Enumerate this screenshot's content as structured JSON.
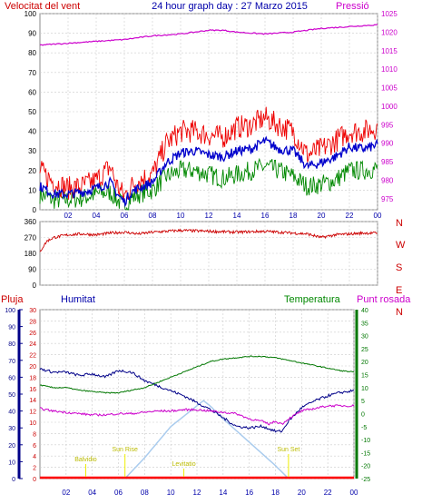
{
  "header": {
    "left_label": "Velocitat del vent",
    "center_title": "24 hour graph day : 27 Marzo 2015",
    "right_label": "Pressió"
  },
  "colors": {
    "wind_gust": "#ee0000",
    "wind_avg": "#0000cc",
    "wind_min": "#008800",
    "pressure": "#cc00cc",
    "direction": "#cc0000",
    "rain": "#ff0000",
    "humidity": "#000088",
    "temperature": "#007700",
    "dewpoint": "#cc00cc",
    "solar": "#aaccee",
    "event": "#eeee00",
    "grid": "#cccccc",
    "text_red": "#cc0000",
    "text_blue": "#0000aa",
    "text_green": "#008800",
    "text_magenta": "#cc00cc"
  },
  "chart_data": [
    {
      "id": "wind_pressure",
      "type": "line",
      "title": "24 hour graph day : 27 Marzo 2015",
      "x_ticks": [
        "02",
        "04",
        "06",
        "08",
        "10",
        "12",
        "14",
        "16",
        "18",
        "20",
        "22",
        "00"
      ],
      "x_range_hours": [
        0,
        24
      ],
      "left_axis": {
        "label": "Velocitat del vent",
        "range": [
          0,
          100
        ],
        "ticks": [
          0,
          10,
          20,
          30,
          40,
          50,
          60,
          70,
          80,
          90,
          100
        ]
      },
      "right_axis": {
        "label": "Pressió",
        "range": [
          972,
          1025
        ],
        "ticks": [
          975,
          980,
          985,
          990,
          995,
          1000,
          1005,
          1010,
          1015,
          1020,
          1025
        ]
      },
      "grid": true,
      "series": [
        {
          "axis": "left",
          "x": [
            0,
            1,
            2,
            3,
            4,
            5,
            5.5,
            6,
            6.5,
            7,
            8,
            9,
            10,
            11,
            12,
            13,
            14,
            15,
            16,
            17,
            18,
            19,
            20,
            21,
            22,
            23,
            24
          ],
          "values": [
            20,
            14,
            11,
            12,
            15,
            22,
            12,
            7,
            12,
            15,
            18,
            34,
            40,
            40,
            38,
            37,
            42,
            43,
            47,
            43,
            40,
            28,
            31,
            35,
            40,
            40,
            42
          ]
        },
        {
          "axis": "left",
          "x": [
            0,
            1,
            2,
            3,
            4,
            5,
            5.5,
            6,
            6.5,
            7,
            8,
            9,
            10,
            11,
            12,
            13,
            14,
            15,
            16,
            17,
            18,
            19,
            20,
            21,
            22,
            23,
            24
          ],
          "values": [
            12,
            8,
            8,
            9,
            11,
            14,
            8,
            4,
            9,
            11,
            14,
            24,
            29,
            30,
            28,
            27,
            30,
            31,
            35,
            31,
            30,
            22,
            24,
            27,
            32,
            31,
            33
          ]
        },
        {
          "axis": "left",
          "x": [
            0,
            1,
            2,
            3,
            4,
            5,
            5.5,
            6,
            6.5,
            7,
            8,
            9,
            10,
            11,
            12,
            13,
            14,
            15,
            16,
            17,
            18,
            19,
            20,
            21,
            22,
            23,
            24
          ],
          "values": [
            8,
            5,
            5,
            6,
            8,
            9,
            5,
            2,
            6,
            8,
            10,
            17,
            20,
            20,
            18,
            16,
            18,
            20,
            22,
            20,
            17,
            12,
            13,
            15,
            20,
            20,
            21
          ]
        },
        {
          "axis": "right",
          "x": [
            0,
            2,
            4,
            6,
            8,
            10,
            12,
            13,
            14,
            16,
            18,
            20,
            22,
            24
          ],
          "values": [
            1016.5,
            1017,
            1017.5,
            1018,
            1019,
            1019.5,
            1020.5,
            1020.5,
            1020,
            1019.5,
            1020,
            1021,
            1021.5,
            1022
          ]
        }
      ]
    },
    {
      "id": "wind_direction",
      "type": "line",
      "x_range_hours": [
        0,
        24
      ],
      "left_axis": {
        "range": [
          0,
          360
        ],
        "ticks": [
          0,
          90,
          180,
          270,
          360
        ]
      },
      "right_labels": [
        "N",
        "W",
        "S",
        "E",
        "N"
      ],
      "grid": true,
      "series": [
        {
          "x": [
            0,
            0.2,
            0.5,
            1,
            2,
            3,
            4,
            5,
            6,
            7,
            8,
            10,
            12,
            14,
            16,
            18,
            19,
            20,
            21,
            22,
            23,
            24
          ],
          "values": [
            185,
            215,
            250,
            270,
            285,
            290,
            285,
            295,
            300,
            290,
            300,
            310,
            305,
            300,
            305,
            295,
            290,
            270,
            285,
            290,
            295,
            295
          ]
        }
      ]
    },
    {
      "id": "rain_hum_temp",
      "type": "line",
      "x_ticks": [
        "02",
        "04",
        "06",
        "08",
        "10",
        "12",
        "14",
        "16",
        "18",
        "20",
        "22",
        "00"
      ],
      "x_range_hours": [
        0,
        24
      ],
      "legend": [
        "Pluja",
        "Humitat",
        "Temperatura",
        "Punt rosada"
      ],
      "rain_axis": {
        "label": "Pluja",
        "range": [
          0,
          30
        ],
        "ticks": [
          0,
          2,
          4,
          6,
          8,
          10,
          12,
          14,
          16,
          18,
          20,
          22,
          24,
          26,
          28,
          30
        ]
      },
      "humidity_axis": {
        "label": "Humitat",
        "range": [
          0,
          100
        ],
        "ticks": [
          0,
          10,
          20,
          30,
          40,
          50,
          60,
          70,
          80,
          90,
          100
        ]
      },
      "temperature_axis": {
        "label": "Temperatura",
        "range": [
          -25,
          40
        ],
        "ticks": [
          -25,
          -20,
          -15,
          -10,
          -5,
          0,
          5,
          10,
          15,
          20,
          25,
          30,
          35,
          40
        ]
      },
      "grid": true,
      "annotations": [
        {
          "label": "Balvidio",
          "hour": 3.5
        },
        {
          "label": "Sun Rise",
          "hour": 6.5
        },
        {
          "label": "Levitatio",
          "hour": 11
        },
        {
          "label": "Sun Set",
          "hour": 19
        }
      ],
      "series": [
        {
          "axis": "humidity",
          "x": [
            0,
            1,
            2,
            3,
            4,
            5,
            6,
            7,
            8,
            9,
            10,
            11,
            12,
            13,
            14,
            15,
            16,
            17,
            18,
            18.5,
            19,
            20,
            21,
            22,
            23,
            24
          ],
          "values": [
            65,
            63,
            63,
            61,
            62,
            60,
            64,
            63,
            58,
            55,
            52,
            49,
            45,
            41,
            36,
            31,
            30,
            31,
            28,
            28,
            34,
            42,
            46,
            49,
            51,
            52
          ]
        },
        {
          "axis": "temperature",
          "x": [
            0,
            1,
            2,
            3,
            4,
            5,
            6,
            7,
            8,
            9,
            10,
            11,
            12,
            13,
            14,
            15,
            16,
            17,
            18,
            19,
            20,
            21,
            22,
            23,
            24
          ],
          "values": [
            11,
            10,
            10,
            9,
            8.5,
            8,
            8,
            9,
            10,
            12,
            14,
            16,
            18,
            20,
            21,
            21.5,
            22,
            22,
            21.5,
            20.5,
            19.5,
            18.5,
            17.5,
            16.5,
            16
          ]
        },
        {
          "axis": "temperature",
          "x": [
            0,
            1,
            2,
            3,
            4,
            5,
            6,
            7,
            8,
            9,
            10,
            11,
            12,
            13,
            14,
            15,
            16,
            17,
            17.5,
            18,
            18.5,
            19,
            20,
            21,
            22,
            23,
            24
          ],
          "values": [
            2,
            1,
            0.5,
            0,
            -0.5,
            -0.5,
            0,
            0,
            0.5,
            1,
            1,
            1.5,
            1.5,
            1,
            0.5,
            0,
            -2,
            -3,
            -4,
            -3,
            -4,
            -2,
            1,
            2,
            3,
            3,
            3
          ]
        },
        {
          "axis": "temperature",
          "type": "area",
          "x": [
            6.5,
            8,
            10,
            12,
            12.5,
            13,
            14,
            16,
            18,
            19
          ],
          "values": [
            -25,
            -17,
            -5,
            3,
            5,
            3,
            -2,
            -11,
            -20,
            -25
          ]
        },
        {
          "axis": "rain",
          "x": [
            0,
            24
          ],
          "values": [
            0,
            0
          ]
        }
      ]
    }
  ]
}
